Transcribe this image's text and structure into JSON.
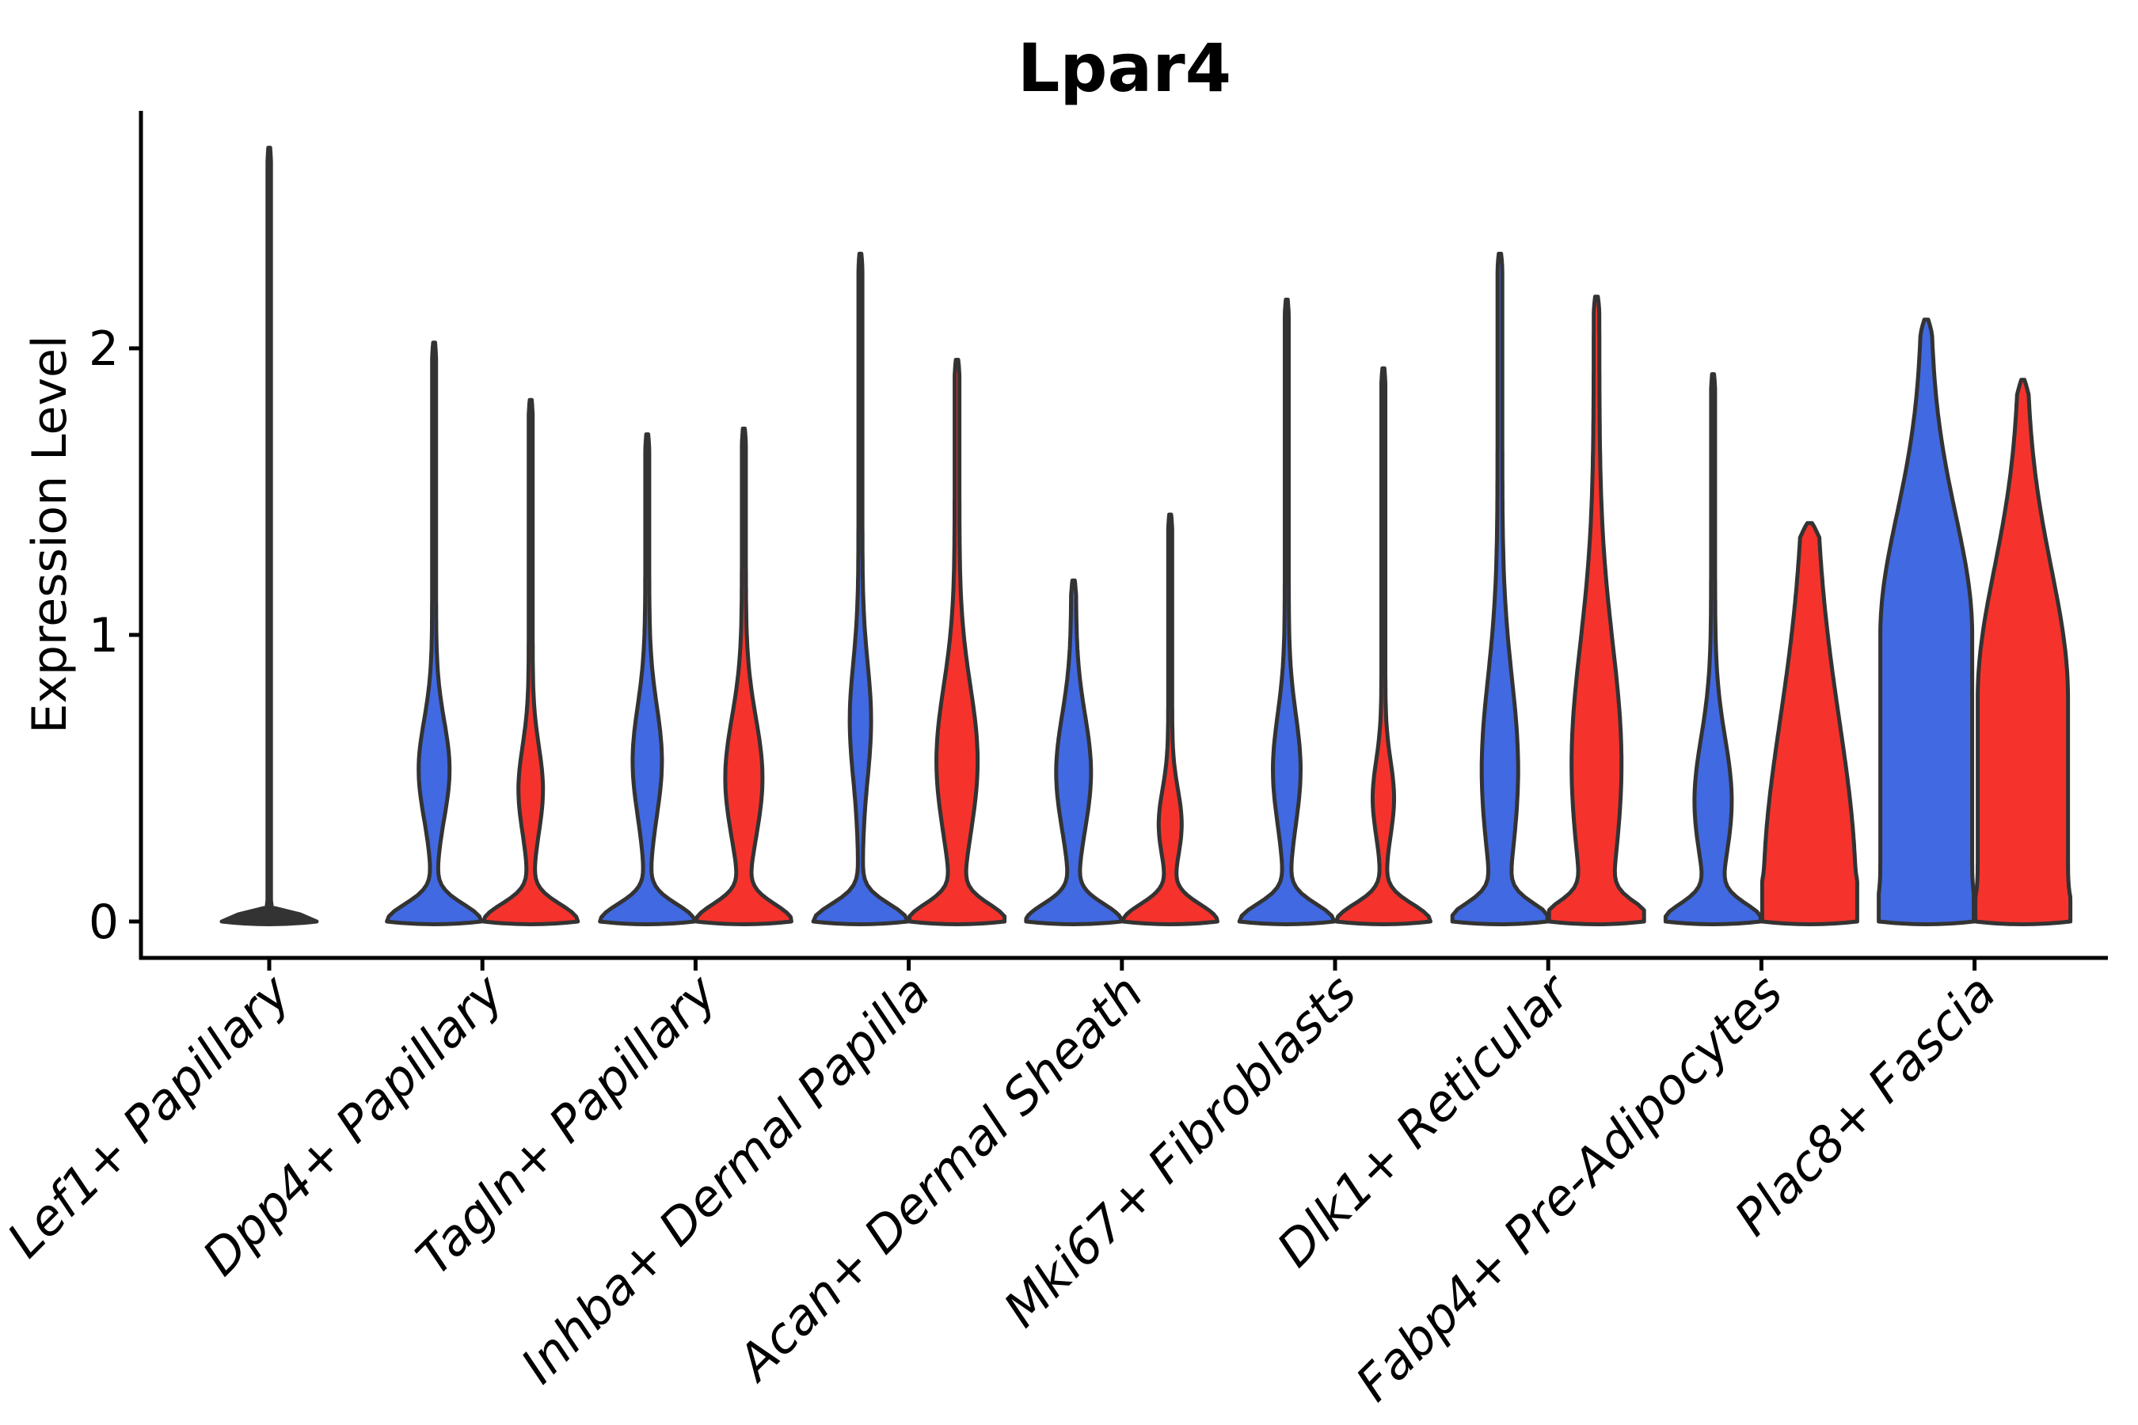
{
  "title": "Lpar4",
  "y_axis": {
    "label": "Expression Level",
    "ticks": [
      "0",
      "1",
      "2"
    ],
    "tick_values": [
      0,
      1,
      2
    ]
  },
  "colors": {
    "blue": "#4169E1",
    "red": "#F5332C",
    "outline": "#333333",
    "background": "#ffffff"
  },
  "chart_data": {
    "type": "violin",
    "title": "Lpar4",
    "ylabel": "Expression Level",
    "xlabel": "",
    "ylim": [
      0,
      2.83
    ],
    "yticks": [
      0,
      1,
      2
    ],
    "grid": false,
    "legend": "none (split violin: blue = left violin, red = right violin of each pair)",
    "categories": [
      "Lef1+ Papillary",
      "Dpp4+ Papillary",
      "Tagln+ Papillary",
      "Inhba+ Dermal Papilla",
      "Acan+ Dermal Sheath",
      "Mki67+ Fibroblasts",
      "Dlk1+ Reticular",
      "Fabp4+ Pre-Adipocytes",
      "Plac8+ Fascia"
    ],
    "series": [
      {
        "name": "blue",
        "max_expression": [
          null,
          2.02,
          1.7,
          2.33,
          1.19,
          2.17,
          2.33,
          1.91,
          2.1
        ]
      },
      {
        "name": "red",
        "max_expression": [
          null,
          1.82,
          1.72,
          1.96,
          1.42,
          1.93,
          2.18,
          1.39,
          1.89
        ]
      },
      {
        "name": "single-flat",
        "max_expression": [
          2.7,
          null,
          null,
          null,
          null,
          null,
          null,
          null,
          null
        ]
      }
    ],
    "violins": [
      {
        "cat": 0,
        "side": "single",
        "max": 2.7,
        "base_w": 120,
        "base_sigma": 0.016,
        "stem_w": 2.2
      },
      {
        "cat": 1,
        "side": "blue",
        "max": 2.02,
        "bulge": {
          "pos": 0.53,
          "w": 17,
          "sigma": 0.17
        },
        "stem_w": 2.5
      },
      {
        "cat": 1,
        "side": "red",
        "max": 1.82,
        "bulge": {
          "pos": 0.46,
          "w": 13,
          "sigma": 0.15
        },
        "stem_w": 2.5
      },
      {
        "cat": 2,
        "side": "blue",
        "max": 1.7,
        "bulge": {
          "pos": 0.56,
          "w": 16,
          "sigma": 0.19
        },
        "stem_w": 2.5
      },
      {
        "cat": 2,
        "side": "red",
        "max": 1.72,
        "bulge": {
          "pos": 0.5,
          "w": 21,
          "sigma": 0.21
        },
        "stem_w": 2.5
      },
      {
        "cat": 3,
        "side": "blue",
        "max": 2.33,
        "bulge": {
          "pos": 0.7,
          "w": 11,
          "sigma": 0.2
        },
        "stem_w": 2.5
      },
      {
        "cat": 3,
        "side": "red",
        "max": 1.96,
        "bulge": {
          "pos": 0.56,
          "w": 23,
          "sigma": 0.26
        },
        "stem_w": 3
      },
      {
        "cat": 4,
        "side": "blue",
        "max": 1.19,
        "bulge": {
          "pos": 0.52,
          "w": 19,
          "sigma": 0.2
        },
        "stem_w": 3
      },
      {
        "cat": 4,
        "side": "red",
        "max": 1.42,
        "bulge": {
          "pos": 0.34,
          "w": 12,
          "sigma": 0.12
        },
        "stem_w": 2.5
      },
      {
        "cat": 5,
        "side": "blue",
        "max": 2.17,
        "bulge": {
          "pos": 0.53,
          "w": 15,
          "sigma": 0.19
        },
        "stem_w": 2.5
      },
      {
        "cat": 5,
        "side": "red",
        "max": 1.93,
        "bulge": {
          "pos": 0.43,
          "w": 11,
          "sigma": 0.13
        },
        "stem_w": 2.5
      },
      {
        "cat": 6,
        "side": "blue",
        "max": 2.33,
        "bulge": {
          "pos": 0.53,
          "w": 20,
          "sigma": 0.32
        },
        "stem_w": 3
      },
      {
        "cat": 6,
        "side": "red",
        "max": 2.18,
        "bulge": {
          "pos": 0.55,
          "w": 28,
          "sigma": 0.42
        },
        "stem_w": 3.5
      },
      {
        "cat": 7,
        "side": "blue",
        "max": 1.91,
        "bulge": {
          "pos": 0.42,
          "w": 21,
          "sigma": 0.22
        },
        "stem_w": 2.5
      },
      {
        "cat": 7,
        "side": "red",
        "max": 1.39,
        "base_w": 40,
        "bulge": {
          "pos": 0.1,
          "w": 52,
          "sigma": 0.6
        },
        "stem_w": 6
      },
      {
        "cat": 8,
        "side": "blue",
        "max": 2.1,
        "base_w": 8,
        "bulge": {
          "pos": 1.0,
          "w": 53,
          "sigma": 0.42,
          "plateau": true
        },
        "stem_w": 5
      },
      {
        "cat": 8,
        "side": "red",
        "max": 1.89,
        "base_w": 8,
        "bulge": {
          "pos": 0.78,
          "w": 53,
          "sigma": 0.45,
          "plateau": true
        },
        "stem_w": 4
      }
    ]
  }
}
